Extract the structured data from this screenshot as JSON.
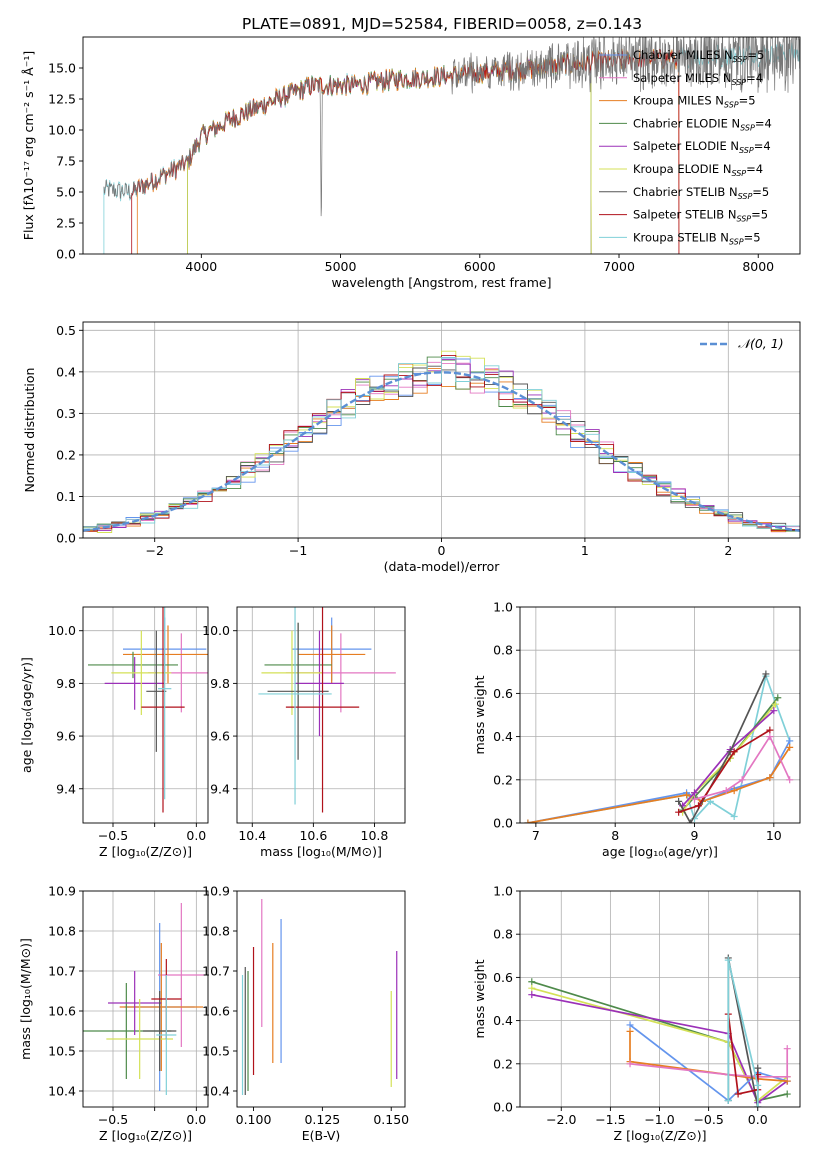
{
  "title": "PLATE=0891, MJD=52584, FIBERID=0058, z=0.143",
  "colors": {
    "Chabrier MILES": "#6495ed",
    "Salpeter MILES": "#e377c2",
    "Kroupa MILES": "#e67e22",
    "Chabrier ELODIE": "#4e8a4a",
    "Salpeter ELODIE": "#9b30b8",
    "Kroupa ELODIE": "#d4e157",
    "Chabrier STELIB": "#555555",
    "Salpeter STELIB": "#b0121b",
    "Kroupa STELIB": "#80d0d8"
  },
  "chart_data": [
    {
      "id": "spectrum",
      "type": "line",
      "xlabel": "wavelength [Angstrom, rest frame]",
      "ylabel": "Flux [fλ10⁻¹⁷ erg cm⁻² s⁻¹ Å⁻¹]",
      "xlim": [
        3150,
        8300
      ],
      "ylim": [
        0,
        17.5
      ],
      "xticks": [
        4000,
        5000,
        6000,
        7000,
        8000
      ],
      "yticks": [
        0.0,
        2.5,
        5.0,
        7.5,
        10.0,
        12.5,
        15.0
      ],
      "ytick_labels": [
        "0.0",
        "2.5",
        "5.0",
        "7.5",
        "10.0",
        "12.5",
        "15.0"
      ],
      "legend": {
        "placement": "top-right",
        "entries": [
          {
            "name": "Chabrier MILES",
            "nssp": "5"
          },
          {
            "name": "Salpeter MILES",
            "nssp": "4"
          },
          {
            "name": "Kroupa MILES",
            "nssp": "5"
          },
          {
            "name": "Chabrier ELODIE",
            "nssp": "4"
          },
          {
            "name": "Salpeter ELODIE",
            "nssp": "4"
          },
          {
            "name": "Kroupa ELODIE",
            "nssp": "4"
          },
          {
            "name": "Chabrier STELIB",
            "nssp": "5"
          },
          {
            "name": "Salpeter STELIB",
            "nssp": "5"
          },
          {
            "name": "Kroupa STELIB",
            "nssp": "5"
          }
        ]
      },
      "continuum": {
        "x": [
          3300,
          3500,
          3700,
          3900,
          4000,
          4200,
          4500,
          4800,
          5100,
          5400,
          5700,
          6000,
          6300,
          6600,
          6900,
          7200,
          7500,
          7800,
          8200
        ],
        "y": [
          5.2,
          5.0,
          6.2,
          7.4,
          9.5,
          10.8,
          12.3,
          13.6,
          13.6,
          14.1,
          14.3,
          14.6,
          14.9,
          15.3,
          15.5,
          15.7,
          15.9,
          16.0,
          16.2
        ]
      },
      "data_range": [
        3300,
        8300
      ],
      "noise_start": 5800,
      "absorption": [
        {
          "x": 4861,
          "depth": 12.5,
          "w": 8
        }
      ],
      "model_edges": [
        {
          "series": "Salpeter STELIB",
          "start": 3500,
          "end": 7430
        },
        {
          "series": "Kroupa MILES",
          "start": 3540,
          "end": 7430
        },
        {
          "series": "Kroupa ELODIE",
          "start": 3900,
          "end": 6800
        },
        {
          "series": "Chabrier ELODIE",
          "start": 3900,
          "end": 6800
        },
        {
          "series": "Salpeter ELODIE",
          "start": 3900,
          "end": 6800
        },
        {
          "series": "Kroupa STELIB",
          "start": 3300,
          "end": 8300
        }
      ]
    },
    {
      "id": "residuals",
      "type": "line",
      "xlabel": "(data-model)/error",
      "ylabel": "Normed distribution",
      "xlim": [
        -2.5,
        2.5
      ],
      "ylim": [
        0,
        0.52
      ],
      "xticks": [
        -2,
        -1,
        0,
        1,
        2
      ],
      "xtick_labels": [
        "−2",
        "−1",
        "0",
        "1",
        "2"
      ],
      "yticks": [
        0.0,
        0.1,
        0.2,
        0.3,
        0.4,
        0.5
      ],
      "ytick_labels": [
        "0.0",
        "0.1",
        "0.2",
        "0.3",
        "0.4",
        "0.5"
      ],
      "legend": {
        "placement": "top-right",
        "label": "𝒩(0, 1)"
      },
      "gaussian": {
        "mean": 0,
        "sigma": 1,
        "color": "#5b8fd4"
      },
      "bin_width": 0.1
    },
    {
      "id": "age-Z",
      "type": "scatter",
      "xlabel": "Z [log₁₀(Z/Z⊙)]",
      "ylabel": "age  [log₁₀(age/yr)]",
      "xlim": [
        -0.68,
        0.07
      ],
      "ylim": [
        9.27,
        10.09
      ],
      "xticks": [
        -0.5,
        -0.25,
        0.0
      ],
      "xtick_labels": [
        "−0.5",
        "",
        "0.0"
      ],
      "yticks": [
        9.4,
        9.6,
        9.8,
        10.0
      ],
      "ytick_labels": [
        "9.4",
        "9.6",
        "9.8",
        "10.0"
      ],
      "points": [
        {
          "series": "Chabrier MILES",
          "x": -0.19,
          "xerr": 0.25,
          "y": 9.93,
          "yerr": 0.12
        },
        {
          "series": "Salpeter MILES",
          "x": -0.09,
          "xerr": 0.2,
          "y": 9.84,
          "yerr": 0.15
        },
        {
          "series": "Kroupa MILES",
          "x": -0.17,
          "xerr": 0.27,
          "y": 9.91,
          "yerr": 0.11
        },
        {
          "series": "Chabrier ELODIE",
          "x": -0.38,
          "xerr": 0.27,
          "y": 9.87,
          "yerr": 0.05
        },
        {
          "series": "Salpeter ELODIE",
          "x": -0.37,
          "xerr": 0.18,
          "y": 9.8,
          "yerr": 0.1
        },
        {
          "series": "Kroupa ELODIE",
          "x": -0.33,
          "xerr": 0.18,
          "y": 9.84,
          "yerr": 0.16
        },
        {
          "series": "Chabrier STELIB",
          "x": -0.24,
          "xerr": 0.06,
          "y": 9.77,
          "yerr": 0.23
        },
        {
          "series": "Salpeter STELIB",
          "x": -0.2,
          "xerr": 0.13,
          "y": 9.71,
          "yerr": 0.4
        },
        {
          "series": "Kroupa STELIB",
          "x": -0.19,
          "xerr": 0.04,
          "y": 9.78,
          "yerr": 0.42
        }
      ]
    },
    {
      "id": "age-mass",
      "type": "scatter",
      "xlabel": "mass [log₁₀(M/M⊙)]",
      "ylabel": "",
      "xlim": [
        10.35,
        10.9
      ],
      "ylim": [
        9.27,
        10.09
      ],
      "xticks": [
        10.4,
        10.6,
        10.8
      ],
      "xtick_labels": [
        "10.4",
        "10.6",
        "10.8"
      ],
      "yticks": [
        9.4,
        9.6,
        9.8,
        10.0
      ],
      "ytick_labels": [
        "9.4",
        "9.6",
        "9.8",
        "10.0"
      ],
      "points": [
        {
          "series": "Chabrier MILES",
          "x": 10.66,
          "xerr": 0.13,
          "y": 9.93,
          "yerr": 0.12
        },
        {
          "series": "Salpeter MILES",
          "x": 10.69,
          "xerr": 0.18,
          "y": 9.84,
          "yerr": 0.15
        },
        {
          "series": "Kroupa MILES",
          "x": 10.66,
          "xerr": 0.11,
          "y": 9.91,
          "yerr": 0.11
        },
        {
          "series": "Chabrier ELODIE",
          "x": 10.55,
          "xerr": 0.11,
          "y": 9.87,
          "yerr": 0.16
        },
        {
          "series": "Salpeter ELODIE",
          "x": 10.62,
          "xerr": 0.08,
          "y": 9.8,
          "yerr": 0.2
        },
        {
          "series": "Kroupa ELODIE",
          "x": 10.53,
          "xerr": 0.1,
          "y": 9.84,
          "yerr": 0.16
        },
        {
          "series": "Chabrier STELIB",
          "x": 10.55,
          "xerr": 0.1,
          "y": 9.77,
          "yerr": 0.26
        },
        {
          "series": "Salpeter STELIB",
          "x": 10.63,
          "xerr": 0.12,
          "y": 9.71,
          "yerr": 0.4
        },
        {
          "series": "Kroupa STELIB",
          "x": 10.54,
          "xerr": 0.12,
          "y": 9.76,
          "yerr": 0.42
        }
      ]
    },
    {
      "id": "weight-age",
      "type": "line",
      "xlabel": "age  [log₁₀(age/yr)]",
      "ylabel": "mass weight",
      "xlim": [
        6.8,
        10.33
      ],
      "ylim": [
        0,
        1.0
      ],
      "xticks": [
        7,
        8,
        9,
        10
      ],
      "xtick_labels": [
        "7",
        "8",
        "9",
        "10"
      ],
      "yticks": [
        0.0,
        0.2,
        0.4,
        0.6,
        0.8,
        1.0
      ],
      "ytick_labels": [
        "0.0",
        "0.2",
        "0.4",
        "0.6",
        "0.8",
        "1.0"
      ],
      "series": [
        {
          "name": "Kroupa STELIB",
          "x": [
            6.9,
            8.9,
            9.0,
            9.2,
            9.5,
            9.9,
            10.2
          ],
          "y": [
            0.0,
            0.13,
            0.02,
            0.1,
            0.03,
            0.68,
            0.38
          ]
        },
        {
          "name": "Chabrier MILES",
          "x": [
            6.9,
            8.9,
            9.1,
            9.5,
            9.95,
            10.2
          ],
          "y": [
            0.0,
            0.14,
            0.1,
            0.16,
            0.21,
            0.38
          ]
        },
        {
          "name": "Kroupa MILES",
          "x": [
            6.9,
            8.9,
            9.1,
            9.5,
            9.95,
            10.2
          ],
          "y": [
            0.0,
            0.13,
            0.1,
            0.15,
            0.21,
            0.35
          ]
        },
        {
          "name": "Chabrier ELODIE",
          "x": [
            8.85,
            9.0,
            9.45,
            10.05
          ],
          "y": [
            0.06,
            0.12,
            0.3,
            0.58
          ]
        },
        {
          "name": "Kroupa ELODIE",
          "x": [
            8.85,
            9.0,
            9.45,
            10.02
          ],
          "y": [
            0.05,
            0.14,
            0.3,
            0.55
          ]
        },
        {
          "name": "Salpeter ELODIE",
          "x": [
            8.85,
            9.0,
            9.45,
            10.0
          ],
          "y": [
            0.08,
            0.14,
            0.34,
            0.52
          ]
        },
        {
          "name": "Chabrier STELIB",
          "x": [
            8.8,
            8.95,
            9.45,
            9.9
          ],
          "y": [
            0.1,
            0.0,
            0.33,
            0.69
          ]
        },
        {
          "name": "Salpeter STELIB",
          "x": [
            8.8,
            9.05,
            9.5,
            9.95
          ],
          "y": [
            0.05,
            0.08,
            0.33,
            0.43
          ]
        },
        {
          "name": "Salpeter MILES",
          "x": [
            9.0,
            9.4,
            9.6,
            9.95,
            10.2
          ],
          "y": [
            0.11,
            0.15,
            0.2,
            0.4,
            0.2
          ]
        }
      ]
    },
    {
      "id": "mass-Z",
      "type": "scatter",
      "xlabel": "Z [log₁₀(Z/Z⊙)]",
      "ylabel": "mass [log₁₀(M/M⊙)]",
      "xlim": [
        -0.68,
        0.07
      ],
      "ylim": [
        10.36,
        10.9
      ],
      "xticks": [
        -0.5,
        -0.25,
        0.0
      ],
      "xtick_labels": [
        "−0.5",
        "",
        "0.0"
      ],
      "yticks": [
        10.4,
        10.5,
        10.6,
        10.7,
        10.8,
        10.9
      ],
      "ytick_labels": [
        "10.4",
        "10.5",
        "10.6",
        "10.7",
        "10.8",
        "10.9"
      ],
      "points": [
        {
          "series": "Chabrier MILES",
          "x": -0.22,
          "xerr": 0.21,
          "y": 10.61,
          "yerr": 0.21
        },
        {
          "series": "Salpeter MILES",
          "x": -0.09,
          "xerr": 0.14,
          "y": 10.69,
          "yerr": 0.18
        },
        {
          "series": "Kroupa MILES",
          "x": -0.21,
          "xerr": 0.25,
          "y": 10.61,
          "yerr": 0.16
        },
        {
          "series": "Chabrier ELODIE",
          "x": -0.42,
          "xerr": 0.27,
          "y": 10.55,
          "yerr": 0.12
        },
        {
          "series": "Salpeter ELODIE",
          "x": -0.37,
          "xerr": 0.16,
          "y": 10.62,
          "yerr": 0.08
        },
        {
          "series": "Kroupa ELODIE",
          "x": -0.34,
          "xerr": 0.2,
          "y": 10.53,
          "yerr": 0.1
        },
        {
          "series": "Chabrier STELIB",
          "x": -0.22,
          "xerr": 0.1,
          "y": 10.55,
          "yerr": 0.1
        },
        {
          "series": "Salpeter STELIB",
          "x": -0.18,
          "xerr": 0.09,
          "y": 10.63,
          "yerr": 0.1
        },
        {
          "series": "Kroupa STELIB",
          "x": -0.18,
          "xerr": 0.06,
          "y": 10.54,
          "yerr": 0.15
        }
      ]
    },
    {
      "id": "mass-EBV",
      "type": "scatter",
      "xlabel": "E(B-V)",
      "ylabel": "",
      "xlim": [
        0.094,
        0.155
      ],
      "ylim": [
        10.36,
        10.9
      ],
      "xticks": [
        0.1,
        0.125,
        0.15
      ],
      "xtick_labels": [
        "0.100",
        "0.125",
        "0.150"
      ],
      "yticks": [
        10.4,
        10.5,
        10.6,
        10.7,
        10.8,
        10.9
      ],
      "ytick_labels": [
        "10.4",
        "10.5",
        "10.6",
        "10.7",
        "10.8",
        "10.9"
      ],
      "points": [
        {
          "series": "Chabrier MILES",
          "x": 0.11,
          "xerr": 0,
          "y": 10.65,
          "yerr": 0.18
        },
        {
          "series": "Salpeter MILES",
          "x": 0.103,
          "xerr": 0,
          "y": 10.72,
          "yerr": 0.16
        },
        {
          "series": "Kroupa MILES",
          "x": 0.107,
          "xerr": 0,
          "y": 10.62,
          "yerr": 0.15
        },
        {
          "series": "Chabrier ELODIE",
          "x": 0.098,
          "xerr": 0,
          "y": 10.55,
          "yerr": 0.15
        },
        {
          "series": "Salpeter ELODIE",
          "x": 0.152,
          "xerr": 0,
          "y": 10.59,
          "yerr": 0.16
        },
        {
          "series": "Kroupa ELODIE",
          "x": 0.15,
          "xerr": 0,
          "y": 10.53,
          "yerr": 0.12
        },
        {
          "series": "Chabrier STELIB",
          "x": 0.097,
          "xerr": 0,
          "y": 10.55,
          "yerr": 0.16
        },
        {
          "series": "Salpeter STELIB",
          "x": 0.1,
          "xerr": 0,
          "y": 10.6,
          "yerr": 0.16
        },
        {
          "series": "Kroupa STELIB",
          "x": 0.096,
          "xerr": 0,
          "y": 10.54,
          "yerr": 0.15
        }
      ]
    },
    {
      "id": "weight-Z",
      "type": "line",
      "xlabel": "Z [log₁₀(Z/Z⊙)]",
      "ylabel": "mass weight",
      "xlim": [
        -2.42,
        0.43
      ],
      "ylim": [
        0,
        1.0
      ],
      "xticks": [
        -2.0,
        -1.5,
        -1.0,
        -0.5,
        0.0
      ],
      "xtick_labels": [
        "−2.0",
        "−1.5",
        "−1.0",
        "−0.5",
        "0.0"
      ],
      "yticks": [
        0.0,
        0.2,
        0.4,
        0.6,
        0.8,
        1.0
      ],
      "ytick_labels": [
        "0.0",
        "0.2",
        "0.4",
        "0.6",
        "0.8",
        "1.0"
      ],
      "series": [
        {
          "name": "Chabrier ELODIE",
          "x": [
            -2.3,
            -0.3,
            0.0,
            0.3
          ],
          "y": [
            0.58,
            0.3,
            0.03,
            0.06
          ]
        },
        {
          "name": "Kroupa ELODIE",
          "x": [
            -2.3,
            -0.3,
            0.0,
            0.3
          ],
          "y": [
            0.55,
            0.3,
            0.03,
            0.14
          ]
        },
        {
          "name": "Salpeter ELODIE",
          "x": [
            -2.3,
            -0.3,
            0.0,
            0.3
          ],
          "y": [
            0.52,
            0.34,
            0.02,
            0.12
          ]
        },
        {
          "name": "Chabrier MILES",
          "x": [
            -1.3,
            -0.3,
            0.0,
            0.3
          ],
          "y": [
            0.38,
            0.03,
            0.16,
            0.12
          ]
        },
        {
          "name": "Kroupa MILES",
          "x": [
            -1.3,
            -1.3,
            -0.3,
            0.0,
            0.3
          ],
          "y": [
            0.35,
            0.21,
            0.15,
            0.13,
            0.12
          ]
        },
        {
          "name": "Salpeter MILES",
          "x": [
            -1.3,
            -0.3,
            0.0,
            0.3,
            0.3
          ],
          "y": [
            0.2,
            0.15,
            0.14,
            0.14,
            0.27
          ]
        },
        {
          "name": "Chabrier STELIB",
          "x": [
            -0.3,
            -0.3,
            0.0,
            0.0
          ],
          "y": [
            0.03,
            0.69,
            0.0,
            0.18
          ]
        },
        {
          "name": "Salpeter STELIB",
          "x": [
            -0.3,
            -0.2,
            0.0,
            0.0
          ],
          "y": [
            0.43,
            0.06,
            0.08,
            0.15
          ]
        },
        {
          "name": "Kroupa STELIB",
          "x": [
            -0.3,
            -0.3,
            0.0,
            0.0
          ],
          "y": [
            0.03,
            0.68,
            0.1,
            0.0
          ]
        }
      ]
    }
  ]
}
